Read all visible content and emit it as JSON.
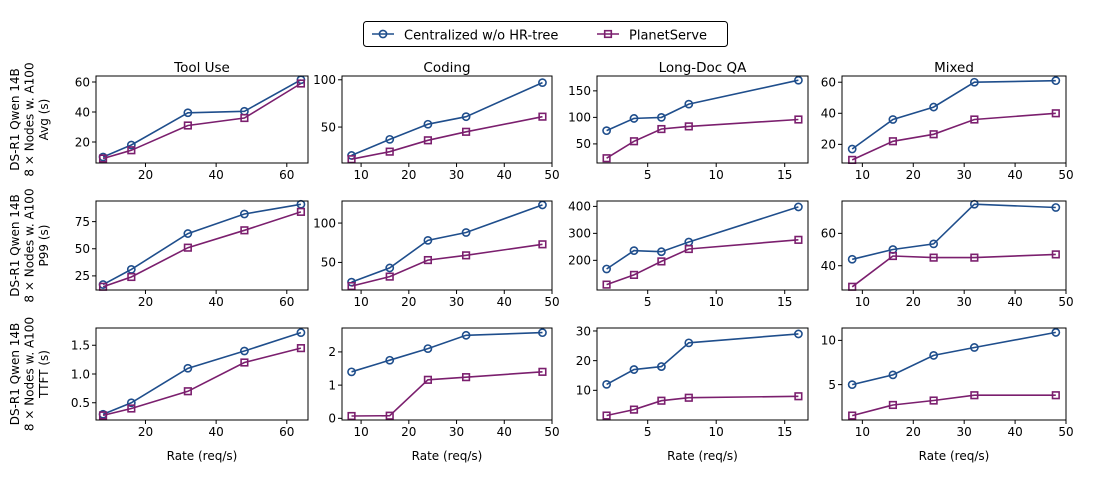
{
  "colors": {
    "centralized": "#1f4e8c",
    "planetserve": "#7b1f6e"
  },
  "legend": {
    "entries": [
      {
        "key": "centralized",
        "label": "Centralized w/o HR-tree",
        "marker": "circle"
      },
      {
        "key": "planetserve",
        "label": "PlanetServe",
        "marker": "square"
      }
    ]
  },
  "row_labels": [
    [
      "DS-R1 Qwen 14B",
      "8 × Nodes w. A100",
      "Avg (s)"
    ],
    [
      "DS-R1 Qwen 14B",
      "8 × Nodes w. A100",
      "P99 (s)"
    ],
    [
      "DS-R1 Qwen 14B",
      "8 × Nodes w. A100",
      "TTFT (s)"
    ]
  ],
  "column_titles": [
    "Tool Use",
    "Coding",
    "Long-Doc QA",
    "Mixed"
  ],
  "xlabel": "Rate (req/s)",
  "chart_data": [
    {
      "type": "line",
      "row": 0,
      "col": 0,
      "xlim": [
        6,
        66
      ],
      "ylim": [
        6,
        64
      ],
      "xticks": [
        20,
        40,
        60
      ],
      "yticks": [
        20,
        40,
        60
      ],
      "series": [
        {
          "name": "Centralized w/o HR-tree",
          "x": [
            8,
            16,
            32,
            48,
            64
          ],
          "y": [
            10,
            18,
            39.5,
            40.5,
            61.5
          ]
        },
        {
          "name": "PlanetServe",
          "x": [
            8,
            16,
            32,
            48,
            64
          ],
          "y": [
            9,
            14.5,
            31,
            36,
            59
          ]
        }
      ]
    },
    {
      "type": "line",
      "row": 0,
      "col": 1,
      "xlim": [
        6,
        50
      ],
      "ylim": [
        12,
        104
      ],
      "xticks": [
        10,
        20,
        30,
        40,
        50
      ],
      "yticks": [
        50,
        100
      ],
      "series": [
        {
          "name": "Centralized w/o HR-tree",
          "x": [
            8,
            16,
            24,
            32,
            48
          ],
          "y": [
            20,
            37,
            53,
            61,
            97
          ]
        },
        {
          "name": "PlanetServe",
          "x": [
            8,
            16,
            24,
            32,
            48
          ],
          "y": [
            16,
            24,
            36,
            45,
            61
          ]
        }
      ]
    },
    {
      "type": "line",
      "row": 0,
      "col": 2,
      "xlim": [
        1.3,
        16.7
      ],
      "ylim": [
        14,
        178
      ],
      "xticks": [
        5,
        10,
        15
      ],
      "yticks": [
        50,
        100,
        150
      ],
      "series": [
        {
          "name": "Centralized w/o HR-tree",
          "x": [
            2,
            4,
            6,
            8,
            16
          ],
          "y": [
            75,
            98,
            100,
            125,
            170
          ]
        },
        {
          "name": "PlanetServe",
          "x": [
            2,
            4,
            6,
            8,
            16
          ],
          "y": [
            23,
            55,
            78,
            83,
            96
          ]
        }
      ]
    },
    {
      "type": "line",
      "row": 0,
      "col": 3,
      "xlim": [
        6,
        50
      ],
      "ylim": [
        8,
        64
      ],
      "xticks": [
        10,
        20,
        30,
        40,
        50
      ],
      "yticks": [
        20,
        40,
        60
      ],
      "series": [
        {
          "name": "Centralized w/o HR-tree",
          "x": [
            8,
            16,
            24,
            32,
            48
          ],
          "y": [
            17,
            36,
            44,
            60,
            61
          ]
        },
        {
          "name": "PlanetServe",
          "x": [
            8,
            16,
            24,
            32,
            48
          ],
          "y": [
            10,
            22,
            26.5,
            36,
            40
          ]
        }
      ]
    },
    {
      "type": "line",
      "row": 1,
      "col": 0,
      "xlim": [
        6,
        66
      ],
      "ylim": [
        12,
        94
      ],
      "xticks": [
        20,
        40,
        60
      ],
      "yticks": [
        25,
        50,
        75
      ],
      "series": [
        {
          "name": "Centralized w/o HR-tree",
          "x": [
            8,
            16,
            32,
            48,
            64
          ],
          "y": [
            17,
            31,
            64,
            82,
            91
          ]
        },
        {
          "name": "PlanetServe",
          "x": [
            8,
            16,
            32,
            48,
            64
          ],
          "y": [
            15,
            24,
            51,
            67,
            84
          ]
        }
      ]
    },
    {
      "type": "line",
      "row": 1,
      "col": 1,
      "xlim": [
        6,
        50
      ],
      "ylim": [
        15,
        128
      ],
      "xticks": [
        10,
        20,
        30,
        40,
        50
      ],
      "yticks": [
        50,
        100
      ],
      "series": [
        {
          "name": "Centralized w/o HR-tree",
          "x": [
            8,
            16,
            24,
            32,
            48
          ],
          "y": [
            25,
            43,
            78,
            88,
            123
          ]
        },
        {
          "name": "PlanetServe",
          "x": [
            8,
            16,
            24,
            32,
            48
          ],
          "y": [
            20,
            32,
            53,
            59,
            73
          ]
        }
      ]
    },
    {
      "type": "line",
      "row": 1,
      "col": 2,
      "xlim": [
        1.3,
        16.7
      ],
      "ylim": [
        90,
        420
      ],
      "xticks": [
        5,
        10,
        15
      ],
      "yticks": [
        200,
        300,
        400
      ],
      "series": [
        {
          "name": "Centralized w/o HR-tree",
          "x": [
            2,
            4,
            6,
            8,
            16
          ],
          "y": [
            168,
            236,
            232,
            268,
            398
          ]
        },
        {
          "name": "PlanetServe",
          "x": [
            2,
            4,
            6,
            8,
            16
          ],
          "y": [
            110,
            146,
            196,
            242,
            276
          ]
        }
      ]
    },
    {
      "type": "line",
      "row": 1,
      "col": 3,
      "xlim": [
        6,
        50
      ],
      "ylim": [
        25,
        80
      ],
      "xticks": [
        10,
        20,
        30,
        40,
        50
      ],
      "yticks": [
        40,
        60
      ],
      "series": [
        {
          "name": "Centralized w/o HR-tree",
          "x": [
            8,
            16,
            24,
            32,
            48
          ],
          "y": [
            44,
            50,
            53.5,
            78,
            76
          ]
        },
        {
          "name": "PlanetServe",
          "x": [
            8,
            16,
            24,
            32,
            48
          ],
          "y": [
            27,
            46,
            45,
            45,
            47
          ]
        }
      ]
    },
    {
      "type": "line",
      "row": 2,
      "col": 0,
      "xlim": [
        6,
        66
      ],
      "ylim": [
        0.2,
        1.8
      ],
      "xticks": [
        20,
        40,
        60
      ],
      "yticks": [
        0.5,
        1.0,
        1.5
      ],
      "ytickLabels": [
        "0.5",
        "1.0",
        "1.5"
      ],
      "series": [
        {
          "name": "Centralized w/o HR-tree",
          "x": [
            8,
            16,
            32,
            48,
            64
          ],
          "y": [
            0.3,
            0.5,
            1.1,
            1.4,
            1.72
          ]
        },
        {
          "name": "PlanetServe",
          "x": [
            8,
            16,
            32,
            48,
            64
          ],
          "y": [
            0.28,
            0.4,
            0.7,
            1.2,
            1.45
          ]
        }
      ]
    },
    {
      "type": "line",
      "row": 2,
      "col": 1,
      "xlim": [
        6,
        50
      ],
      "ylim": [
        -0.05,
        2.72
      ],
      "xticks": [
        10,
        20,
        30,
        40,
        50
      ],
      "yticks": [
        0,
        1,
        2
      ],
      "series": [
        {
          "name": "Centralized w/o HR-tree",
          "x": [
            8,
            16,
            24,
            32,
            48
          ],
          "y": [
            1.4,
            1.75,
            2.1,
            2.5,
            2.58
          ]
        },
        {
          "name": "PlanetServe",
          "x": [
            8,
            16,
            24,
            32,
            48
          ],
          "y": [
            0.07,
            0.08,
            1.16,
            1.24,
            1.4
          ]
        }
      ]
    },
    {
      "type": "line",
      "row": 2,
      "col": 2,
      "xlim": [
        1.3,
        16.7
      ],
      "ylim": [
        0,
        31
      ],
      "xticks": [
        5,
        10,
        15
      ],
      "yticks": [
        10,
        20,
        30
      ],
      "series": [
        {
          "name": "Centralized w/o HR-tree",
          "x": [
            2,
            4,
            6,
            8,
            16
          ],
          "y": [
            12,
            17,
            18,
            26,
            29
          ]
        },
        {
          "name": "PlanetServe",
          "x": [
            2,
            4,
            6,
            8,
            16
          ],
          "y": [
            1.5,
            3.5,
            6.5,
            7.5,
            8
          ]
        }
      ]
    },
    {
      "type": "line",
      "row": 2,
      "col": 3,
      "xlim": [
        6,
        50
      ],
      "ylim": [
        1,
        11.4
      ],
      "xticks": [
        10,
        20,
        30,
        40,
        50
      ],
      "yticks": [
        5,
        10
      ],
      "series": [
        {
          "name": "Centralized w/o HR-tree",
          "x": [
            8,
            16,
            24,
            32,
            48
          ],
          "y": [
            5,
            6.1,
            8.3,
            9.2,
            10.9
          ]
        },
        {
          "name": "PlanetServe",
          "x": [
            8,
            16,
            24,
            32,
            48
          ],
          "y": [
            1.5,
            2.7,
            3.2,
            3.8,
            3.8
          ]
        }
      ]
    }
  ]
}
